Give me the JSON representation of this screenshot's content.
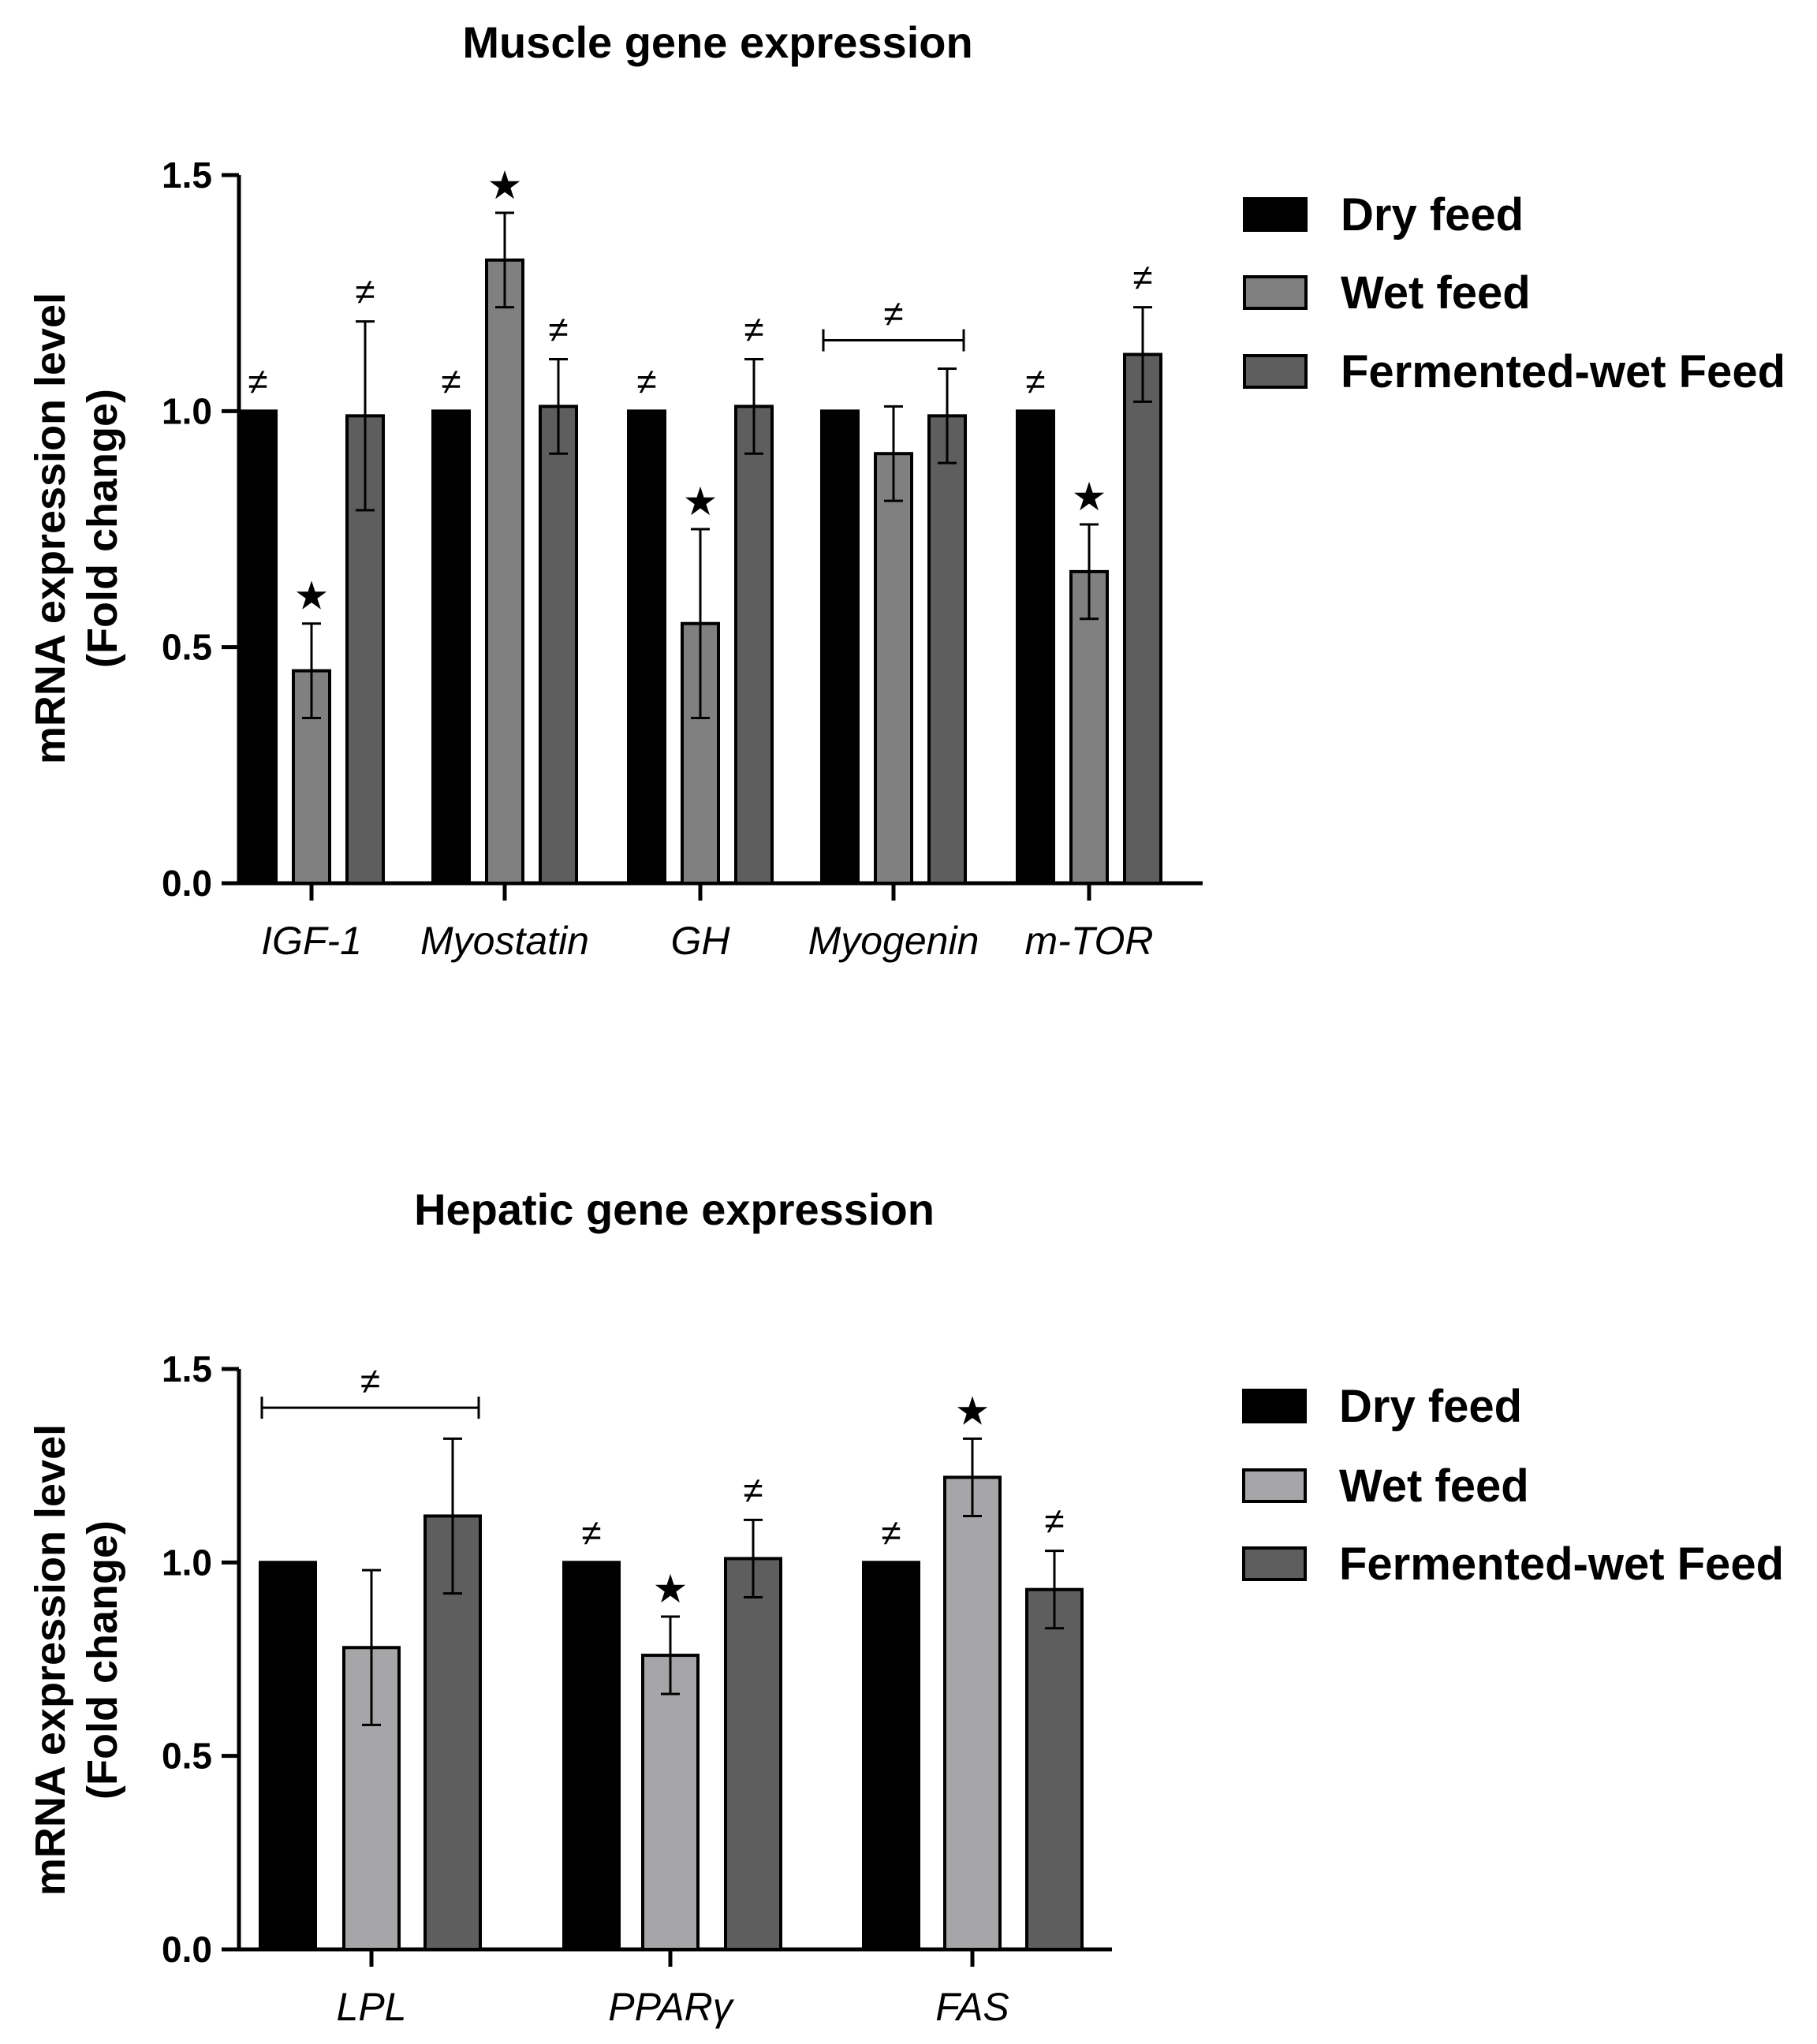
{
  "chart_data": [
    {
      "type": "bar",
      "title": "Muscle gene expression",
      "ylabel_line1": "mRNA expression level",
      "ylabel_line2": "(Fold change)",
      "ylim": [
        0,
        1.5
      ],
      "yticks": [
        0.0,
        0.5,
        1.0,
        1.5
      ],
      "ytick_labels": [
        "0.0",
        "0.5",
        "1.0",
        "1.5"
      ],
      "categories": [
        "IGF-1",
        "Myostatin",
        "GH",
        "Myogenin",
        "m-TOR"
      ],
      "series": [
        {
          "name": "Dry feed",
          "color": "#000000",
          "values": [
            1.0,
            1.0,
            1.0,
            1.0,
            1.0
          ],
          "errors": [
            0,
            0,
            0,
            0,
            0
          ]
        },
        {
          "name": "Wet feed",
          "color": "#808080",
          "values": [
            0.45,
            1.32,
            0.55,
            0.91,
            0.66
          ],
          "errors": [
            0.1,
            0.1,
            0.2,
            0.1,
            0.1
          ]
        },
        {
          "name": "Fermented-wet Feed",
          "color": "#5e5e5e",
          "values": [
            0.99,
            1.01,
            1.01,
            0.99,
            1.12
          ],
          "errors": [
            0.2,
            0.1,
            0.1,
            0.1,
            0.1
          ]
        }
      ],
      "markers": [
        {
          "symbol": "≠",
          "category": 0,
          "series": 0
        },
        {
          "symbol": "★",
          "category": 0,
          "series": 1
        },
        {
          "symbol": "≠",
          "category": 0,
          "series": 2
        },
        {
          "symbol": "≠",
          "category": 1,
          "series": 0
        },
        {
          "symbol": "★",
          "category": 1,
          "series": 1
        },
        {
          "symbol": "≠",
          "category": 1,
          "series": 2
        },
        {
          "symbol": "≠",
          "category": 2,
          "series": 0
        },
        {
          "symbol": "★",
          "category": 2,
          "series": 1
        },
        {
          "symbol": "≠",
          "category": 2,
          "series": 2
        },
        {
          "symbol": "≠",
          "category": 4,
          "series": 0
        },
        {
          "symbol": "★",
          "category": 4,
          "series": 1
        },
        {
          "symbol": "≠",
          "category": 4,
          "series": 2
        }
      ],
      "brackets": [
        {
          "symbol": "≠",
          "category": 3,
          "from_series": 0,
          "to_series": 2,
          "y": 1.15
        }
      ],
      "legend": [
        "Dry feed",
        "Wet feed",
        "Fermented-wet Feed"
      ],
      "legend_position": "right"
    },
    {
      "type": "bar",
      "title": "Hepatic gene expression",
      "ylabel_line1": "mRNA expression level",
      "ylabel_line2": "(Fold change)",
      "ylim": [
        0,
        1.5
      ],
      "yticks": [
        0.0,
        0.5,
        1.0,
        1.5
      ],
      "ytick_labels": [
        "0.0",
        "0.5",
        "1.0",
        "1.5"
      ],
      "categories": [
        "LPL",
        "PPARγ",
        "FAS"
      ],
      "series": [
        {
          "name": "Dry feed",
          "color": "#000000",
          "values": [
            1.0,
            1.0,
            1.0
          ],
          "errors": [
            0,
            0,
            0
          ]
        },
        {
          "name": "Wet feed",
          "color": "#a6a6a8",
          "values": [
            0.78,
            0.76,
            1.22
          ],
          "errors": [
            0.2,
            0.1,
            0.1
          ]
        },
        {
          "name": "Fermented-wet Feed",
          "color": "#5e5e5e",
          "values": [
            1.12,
            1.01,
            0.93
          ],
          "errors": [
            0.2,
            0.1,
            0.1
          ]
        }
      ],
      "markers": [
        {
          "symbol": "≠",
          "category": 1,
          "series": 0
        },
        {
          "symbol": "★",
          "category": 1,
          "series": 1
        },
        {
          "symbol": "≠",
          "category": 1,
          "series": 2
        },
        {
          "symbol": "≠",
          "category": 2,
          "series": 0
        },
        {
          "symbol": "★",
          "category": 2,
          "series": 1
        },
        {
          "symbol": "≠",
          "category": 2,
          "series": 2
        }
      ],
      "brackets": [
        {
          "symbol": "≠",
          "category": 0,
          "from_series": 0,
          "to_series": 2,
          "y": 1.4
        }
      ],
      "legend": [
        "Dry feed",
        "Wet feed",
        "Fermented-wet Feed"
      ],
      "legend_position": "right"
    }
  ]
}
